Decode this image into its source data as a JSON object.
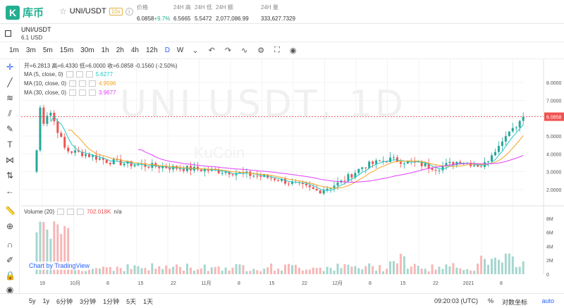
{
  "topbar": {
    "logo_mark": "K",
    "logo_text": "库币",
    "pair": "UNI/USDT",
    "leverage": "10x",
    "price_label": "价格",
    "price_value": "6.0858",
    "price_change": "+9.7%",
    "high_label": "24H 高",
    "high_value": "6.5665",
    "low_label": "24H 低",
    "low_value": "5.5472",
    "turnover_label": "24H 额",
    "turnover_value": "2,077,086.99",
    "volume_label": "24H 量",
    "volume_value": "333,627.7329"
  },
  "symbol": {
    "name": "UNI/USDT",
    "price": "6.1 USD"
  },
  "timeframes": [
    "1m",
    "3m",
    "5m",
    "15m",
    "30m",
    "1h",
    "2h",
    "4h",
    "12h",
    "D",
    "W"
  ],
  "active_timeframe": "D",
  "legend": {
    "ohlc": "开=6.2813 高=6.4330 低=6.0000 收=6.0858 -0.1560 (-2.50%)",
    "ma5_label": "MA (5, close, 0)",
    "ma5_value": "5.6277",
    "ma10_label": "MA (10, close, 0)",
    "ma10_value": "4.9596",
    "ma30_label": "MA (30, close, 0)",
    "ma30_value": "3.9677",
    "vol_label": "Volume (20)",
    "vol_value": "702.018K",
    "vol_na": "n/a"
  },
  "watermark": {
    "symbol": "UNI USDT, 1D",
    "source": "KuCoin"
  },
  "tradingview": "Chart by TradingView",
  "bottom": {
    "ranges": [
      "5y",
      "1y",
      "6分钟",
      "3分钟",
      "1分钟",
      "5天",
      "1天"
    ],
    "clock": "09:20:03 (UTC)",
    "percent": "%",
    "log": "对数坐标",
    "auto": "auto"
  },
  "colors": {
    "up": "#26a69a",
    "down": "#ef5350",
    "ma5": "#23c6c6",
    "ma10": "#f5a623",
    "ma30": "#e040fb",
    "brand": "#23af91"
  },
  "chart_data": {
    "type": "candlestick",
    "price_axis": [
      "8.0000",
      "7.0000",
      "6.0000",
      "5.0000",
      "4.0000",
      "3.0000",
      "2.0000"
    ],
    "price_ylim": [
      1.6,
      8.6
    ],
    "last_price": "6.0858",
    "volume_axis": [
      "8M",
      "6M",
      "4M",
      "2M",
      "0"
    ],
    "volume_ylim": [
      0,
      8.8
    ],
    "x_labels": [
      "19",
      "10月",
      "8",
      "15",
      "22",
      "11月",
      "8",
      "15",
      "22",
      "12月",
      "8",
      "15",
      "22",
      "2021",
      "8"
    ],
    "ma5_value": 5.6277,
    "ma10_value": 4.9596,
    "ma30_value": 3.9677
  }
}
